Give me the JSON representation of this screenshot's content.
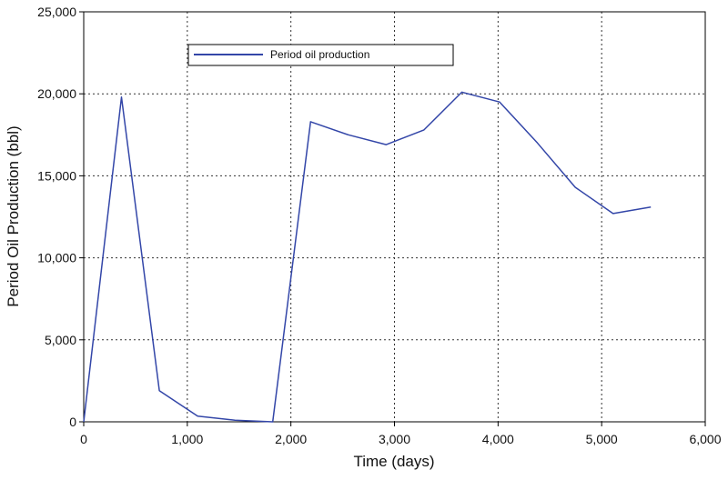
{
  "chart_data": {
    "type": "line",
    "xlabel": "Time (days)",
    "ylabel": "Period Oil Production (bbl)",
    "xlim": [
      0,
      6000
    ],
    "ylim": [
      0,
      25000
    ],
    "x_ticks": [
      0,
      1000,
      2000,
      3000,
      4000,
      5000,
      6000
    ],
    "x_tick_labels": [
      "0",
      "1,000",
      "2,000",
      "3,000",
      "4,000",
      "5,000",
      "6,000"
    ],
    "y_ticks": [
      0,
      5000,
      10000,
      15000,
      20000,
      25000
    ],
    "y_tick_labels": [
      "0",
      "5,000",
      "10,000",
      "15,000",
      "20,000",
      "25,000"
    ],
    "grid": true,
    "grid_style": "dotted",
    "legend_position": "top-left",
    "series": [
      {
        "name": "Period oil production",
        "color": "#3346a8",
        "x": [
          0,
          365,
          730,
          1100,
          1460,
          1825,
          2190,
          2555,
          2920,
          3285,
          3650,
          4015,
          4380,
          4745,
          5110,
          5475
        ],
        "y": [
          0,
          19800,
          1900,
          350,
          100,
          0,
          18300,
          17500,
          16900,
          17800,
          20100,
          19500,
          17000,
          14300,
          12700,
          13100
        ]
      }
    ]
  }
}
